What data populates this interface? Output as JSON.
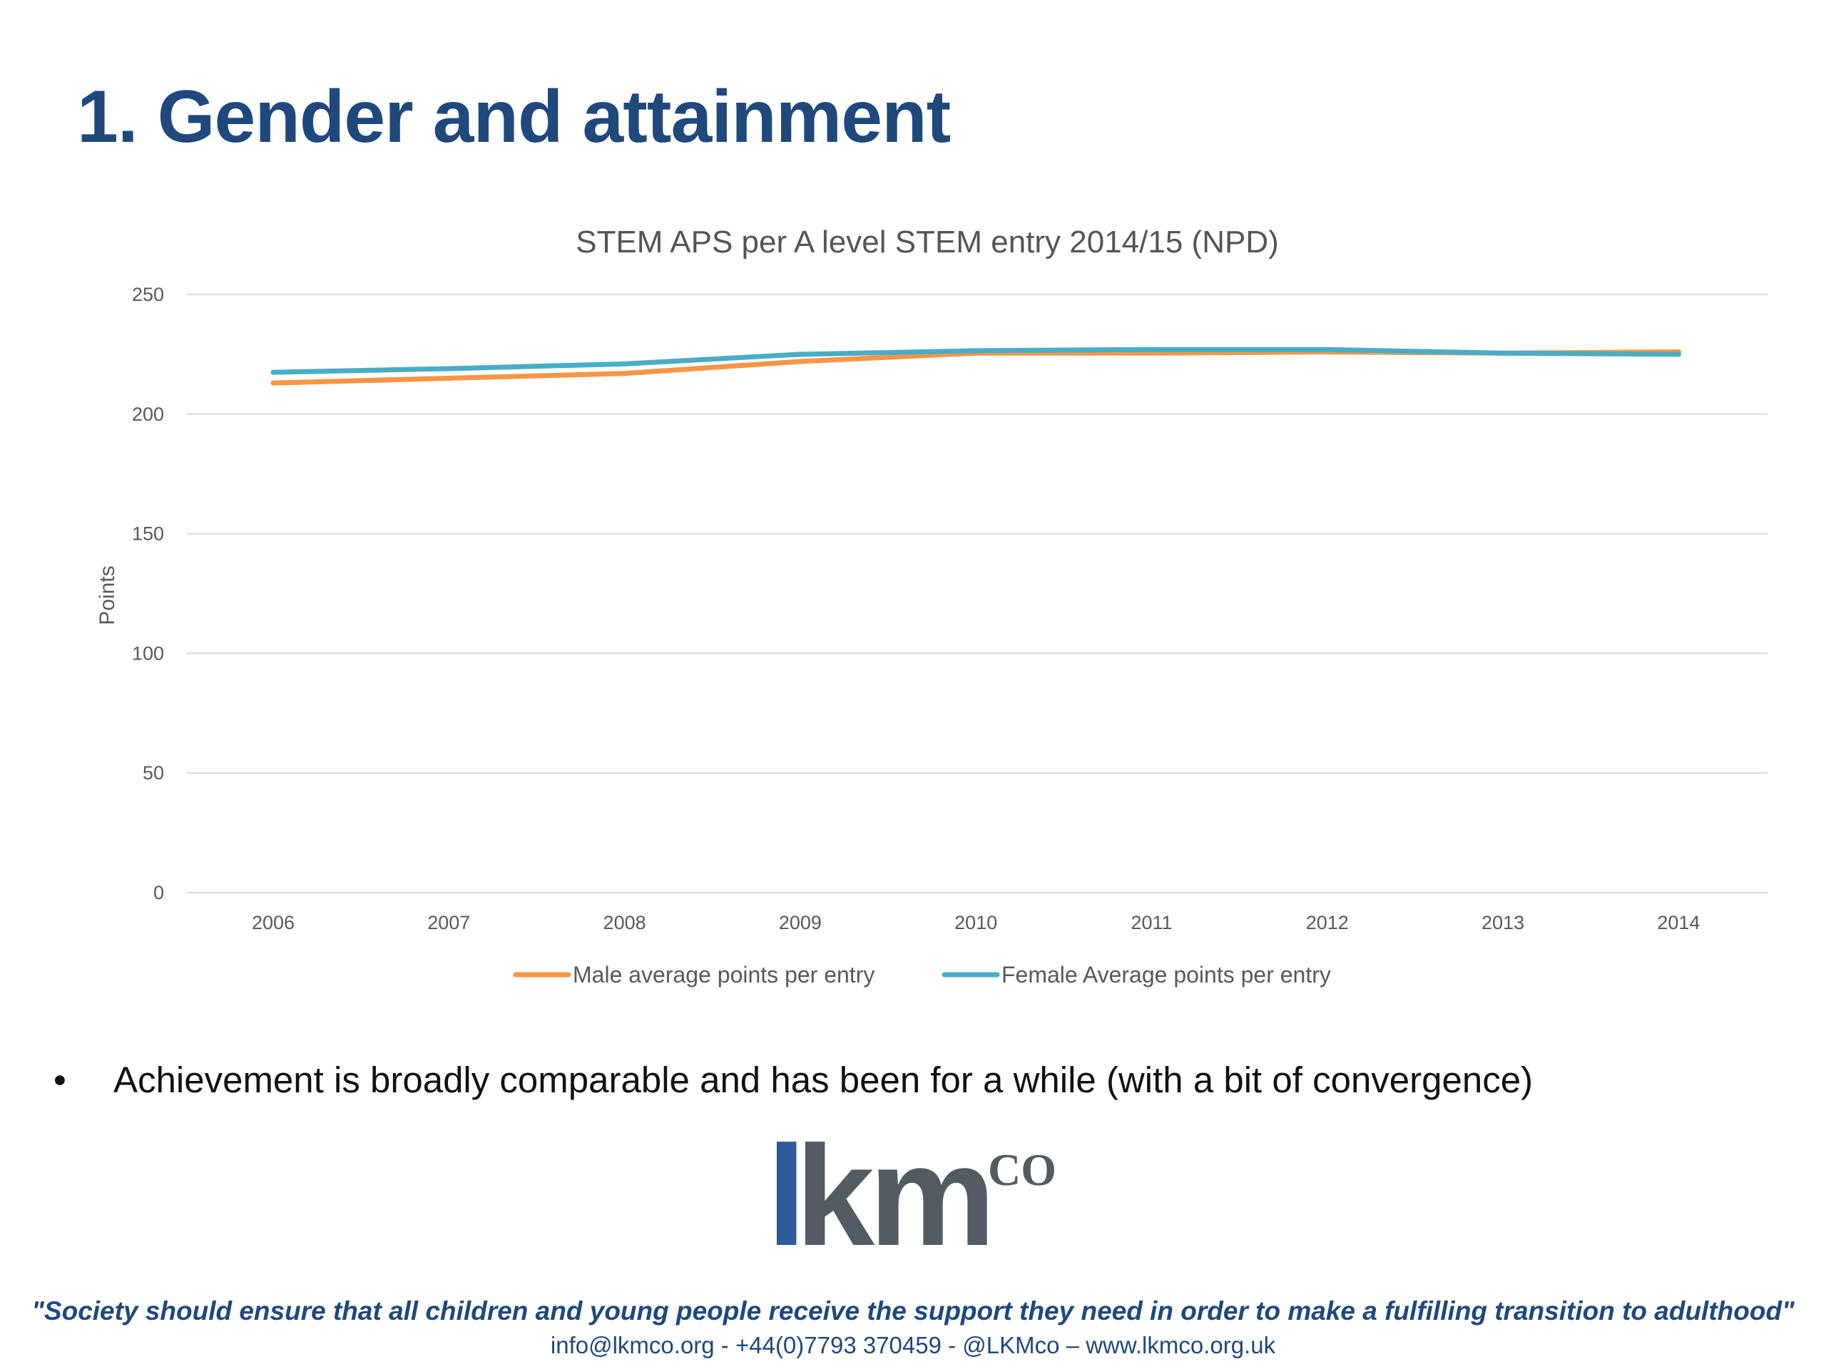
{
  "slide": {
    "title": "1. Gender and attainment",
    "bullet": "Achievement is broadly comparable and has been for a while (with a bit of convergence)",
    "bullet_symbol": "•"
  },
  "chart_data": {
    "type": "line",
    "title": "STEM APS per A level STEM entry 2014/15 (NPD)",
    "xlabel": "",
    "ylabel": "Points",
    "ylim": [
      0,
      250
    ],
    "yticks": [
      "0",
      "50",
      "100",
      "150",
      "200",
      "250"
    ],
    "categories": [
      "2006",
      "2007",
      "2008",
      "2009",
      "2010",
      "2011",
      "2012",
      "2013",
      "2014"
    ],
    "grid": true,
    "legend_position": "bottom",
    "series": [
      {
        "name": "Male average points per entry",
        "color": "#f79646",
        "values": [
          213,
          215,
          217,
          222,
          225.5,
          225.5,
          226,
          225.5,
          226
        ]
      },
      {
        "name": "Female Average points per entry",
        "color": "#4bacc6",
        "values": [
          217.5,
          219,
          221,
          225,
          226.5,
          227,
          227,
          225.5,
          225
        ]
      }
    ]
  },
  "logo": {
    "text_l": "l",
    "text_km": "km",
    "text_co": "CO"
  },
  "footer": {
    "tagline": "\"Society should ensure that all children and young people receive the support they need in order to make a fulfilling transition to adulthood\"",
    "contact": "info@lkmco.org - +44(0)7793 370459 - @LKMco – www.lkmco.org.uk"
  }
}
